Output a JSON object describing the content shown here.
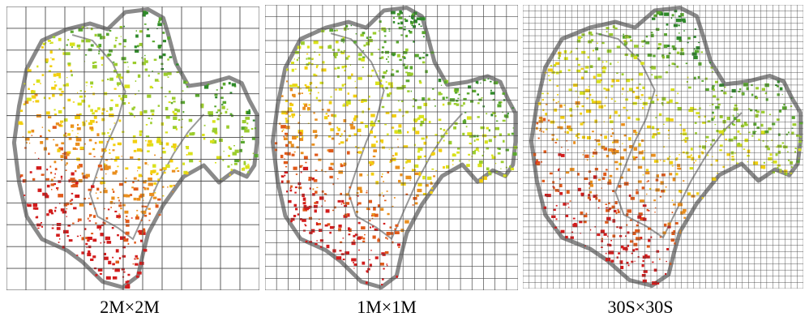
{
  "panels": [
    {
      "caption": "2M×2M"
    },
    {
      "caption": "1M×1M"
    },
    {
      "caption": "30S×30S"
    }
  ],
  "colors": {
    "boundary": "#8a8a8a",
    "grid": "#4a4a4a",
    "ramp": [
      "#2f8a2a",
      "#5aa82f",
      "#9ccd2e",
      "#d9e21c",
      "#f2cf10",
      "#ea8f1e",
      "#e05a1a",
      "#d21c1c"
    ]
  }
}
